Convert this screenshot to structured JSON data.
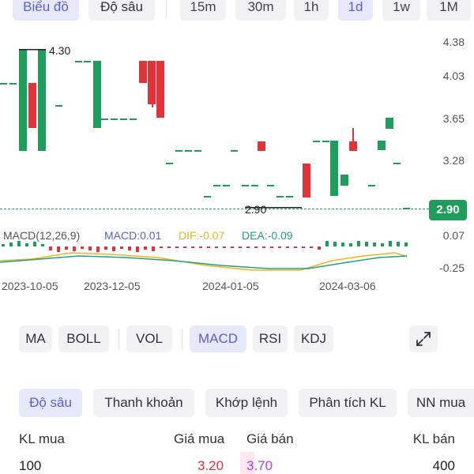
{
  "top_tabs": [
    {
      "label": "Biểu đồ",
      "active": true
    },
    {
      "label": "Độ sâu",
      "active": false
    }
  ],
  "timeframes": [
    {
      "label": "15m",
      "active": false
    },
    {
      "label": "30m",
      "active": false
    },
    {
      "label": "1h",
      "active": false
    },
    {
      "label": "1d",
      "active": true
    },
    {
      "label": "1w",
      "active": false
    },
    {
      "label": "1M",
      "active": false
    }
  ],
  "price_axis": [
    "4.38",
    "4.03",
    "3.65",
    "3.28",
    "2.90"
  ],
  "current_price": "2.90",
  "max_label": "4.30",
  "min_label": "2.90",
  "macd": {
    "title": "MACD(12,26,9)",
    "macd_label": "MACD:0.01",
    "dif_label": "DIF:-0.07",
    "dea_label": "DEA:-0.09",
    "axis_top": "0.07",
    "axis_bottom": "-0.25"
  },
  "dates": [
    "2023-10-05",
    "2023-12-05",
    "2024-01-05",
    "2024-03-06"
  ],
  "indicators": [
    {
      "label": "MA",
      "active": false
    },
    {
      "label": "BOLL",
      "active": false
    },
    {
      "label": "VOL",
      "active": false
    },
    {
      "label": "MACD",
      "active": true
    },
    {
      "label": "RSI",
      "active": false
    },
    {
      "label": "KDJ",
      "active": false
    }
  ],
  "bottom_tabs": [
    {
      "label": "Độ sâu",
      "active": true
    },
    {
      "label": "Thanh khoản",
      "active": false
    },
    {
      "label": "Khớp lệnh",
      "active": false
    },
    {
      "label": "Phân tích KL",
      "active": false
    },
    {
      "label": "NN mua",
      "active": false
    }
  ],
  "order_book": {
    "headers": {
      "kl_mua": "KL mua",
      "gia_mua": "Giá mua",
      "gia_ban": "Giá bán",
      "kl_ban": "KL bán"
    },
    "row": {
      "kl_mua": "100",
      "gia_mua": "3.20",
      "gia_ban": "3.70",
      "kl_ban": "400"
    }
  },
  "colors": {
    "up": "#1e9e5a",
    "down": "#e0333a",
    "accent": "#5a5fd6",
    "dif": "#e6b820",
    "dea": "#2a9d7e"
  }
}
